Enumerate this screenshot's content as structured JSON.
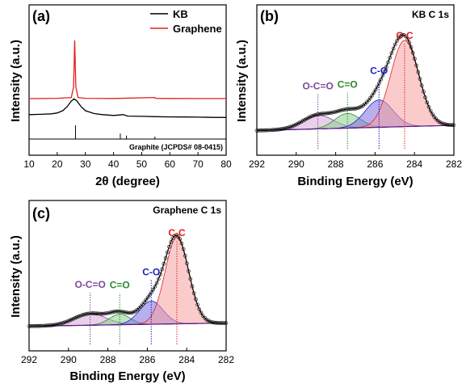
{
  "chart_data": [
    {
      "type": "line",
      "panel_label": "(a)",
      "xlabel": "2θ (degree)",
      "ylabel": "Intensity (a.u.)",
      "xlim": [
        10,
        80
      ],
      "x_ticks": [
        "10",
        "20",
        "30",
        "40",
        "50",
        "60",
        "70",
        "80"
      ],
      "legend_position": "top-right",
      "series": [
        {
          "name": "KB",
          "color": "#000000",
          "offset": 0.42,
          "x": [
            10,
            14,
            18,
            20,
            22,
            23.5,
            25,
            26,
            27,
            28.5,
            30,
            33,
            36,
            40,
            43.5,
            45,
            50,
            55,
            60,
            65,
            70,
            75,
            80
          ],
          "y": [
            0.06,
            0.065,
            0.075,
            0.09,
            0.13,
            0.2,
            0.3,
            0.34,
            0.3,
            0.2,
            0.13,
            0.08,
            0.06,
            0.045,
            0.06,
            0.035,
            0.03,
            0.025,
            0.02,
            0.018,
            0.015,
            0.012,
            0.01
          ]
        },
        {
          "name": "Graphene",
          "color": "#e02020",
          "offset": 0.72,
          "x": [
            10,
            20,
            25,
            25.8,
            26.2,
            26.6,
            27.4,
            30,
            40,
            54.6,
            55,
            60,
            70,
            80
          ],
          "y": [
            0.0,
            0.005,
            0.02,
            0.2,
            1.0,
            0.2,
            0.02,
            0.005,
            0.003,
            0.02,
            0.004,
            0.003,
            0.002,
            0.001
          ]
        }
      ],
      "reference": {
        "label": "Graphite (JCPDS# 08-0415)",
        "lines": [
          {
            "x": 26.5,
            "h": 1.0
          },
          {
            "x": 42.4,
            "h": 0.4
          },
          {
            "x": 44.6,
            "h": 0.25
          },
          {
            "x": 54.7,
            "h": 0.18
          }
        ]
      }
    },
    {
      "type": "line",
      "panel_label": "(b)",
      "title": "KB C 1s",
      "xlabel": "Binding Energy (eV)",
      "ylabel": "Intensity (a.u.)",
      "xlim": [
        292,
        282
      ],
      "x_ticks": [
        "292",
        "290",
        "288",
        "286",
        "284",
        "282"
      ],
      "components": [
        {
          "label": "C-C",
          "center": 284.5,
          "height": 0.82,
          "width": 1.0,
          "fill": "#f7a0a0",
          "line": "#e02020"
        },
        {
          "label": "C-O",
          "center": 285.8,
          "height": 0.26,
          "width": 1.0,
          "fill": "#7c6ee0",
          "line": "#2020c0"
        },
        {
          "label": "C=O",
          "center": 287.4,
          "height": 0.14,
          "width": 0.9,
          "fill": "#8cd08c",
          "line": "#2a8a2a"
        },
        {
          "label": "O-C=O",
          "center": 288.9,
          "height": 0.13,
          "width": 1.1,
          "fill": "#d8a8d8",
          "line": "#7a4a9a"
        }
      ],
      "baseline": 0.05
    },
    {
      "type": "line",
      "panel_label": "(c)",
      "title": "Graphene C 1s",
      "xlabel": "Binding Energy (eV)",
      "ylabel": "Intensity (a.u.)",
      "xlim": [
        292,
        282
      ],
      "x_ticks": [
        "292",
        "290",
        "288",
        "286",
        "284",
        "282"
      ],
      "components": [
        {
          "label": "C-C",
          "center": 284.5,
          "height": 0.82,
          "width": 0.85,
          "fill": "#f7a0a0",
          "line": "#e02020"
        },
        {
          "label": "C-O",
          "center": 285.8,
          "height": 0.22,
          "width": 0.85,
          "fill": "#7c6ee0",
          "line": "#2020c0"
        },
        {
          "label": "C=O",
          "center": 287.4,
          "height": 0.1,
          "width": 0.75,
          "fill": "#8cd08c",
          "line": "#2a8a2a"
        },
        {
          "label": "O-C=O",
          "center": 288.9,
          "height": 0.11,
          "width": 1.15,
          "fill": "#d8a8d8",
          "line": "#7a4a9a"
        }
      ],
      "baseline": 0.03
    }
  ]
}
